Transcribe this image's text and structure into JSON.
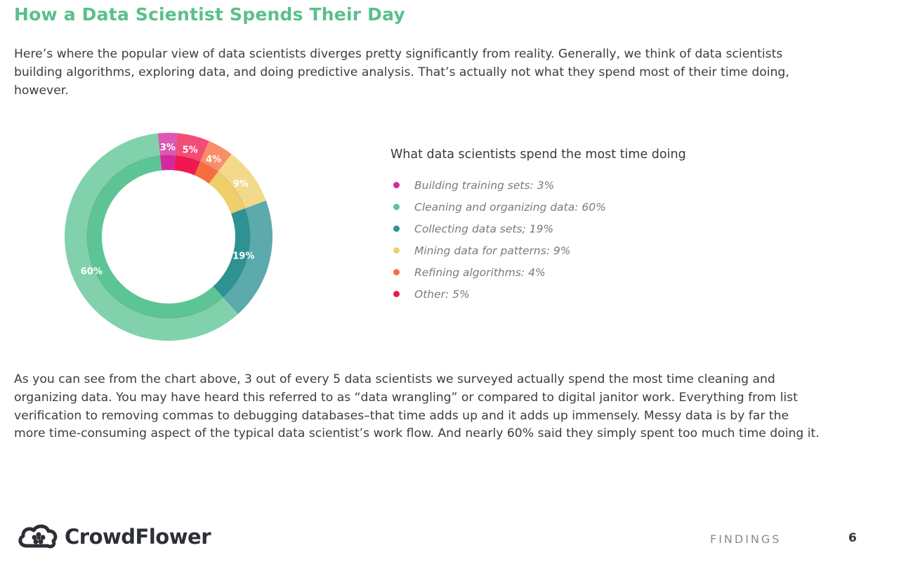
{
  "page": {
    "title": "How a Data Scientist Spends Their Day",
    "intro": "Here’s where the popular view of data scientists diverges pretty significantly from reality. Generally, we think of data scientists building algorithms, exploring data, and doing predictive analysis. That’s actually not what they spend most of their time doing, however.",
    "body": "As you can see from the chart above, 3 out of every 5 data scientists we surveyed actually spend the most time cleaning and organizing data. You may have heard this referred to as “data wrangling” or compared to digital janitor work. Everything from list verification to removing commas to debugging databases–that time adds up and it adds up immensely. Messy data is by far the more time-consuming aspect of the typical data scientist’s work flow. And nearly 60% said they simply spent too much time doing it."
  },
  "footer": {
    "brand": "CrowdFlower",
    "section": "FINDINGS",
    "page_number": "6"
  },
  "icons": {
    "brand_logo": "cloud-flower-icon",
    "legend_marker": "circle-dot-icon"
  },
  "chart_data": {
    "type": "pie",
    "title": "What data scientists spend the most time doing",
    "style": "donut",
    "legend_position": "right",
    "slices": [
      {
        "category": "Building training sets",
        "value": 3,
        "label": "3%",
        "legend": "Building training sets: 3%",
        "color": "#d4289f"
      },
      {
        "category": "Other",
        "value": 5,
        "label": "5%",
        "legend": "Other: 5%",
        "color": "#f0194f"
      },
      {
        "category": "Refining algorithms",
        "value": 4,
        "label": "4%",
        "legend": "Refining algorithms: 4%",
        "color": "#f86d3f"
      },
      {
        "category": "Mining data for patterns",
        "value": 9,
        "label": "9%",
        "legend": "Mining data for patterns: 9%",
        "color": "#efcf6a"
      },
      {
        "category": "Collecting data sets",
        "value": 19,
        "label": "19%",
        "legend": "Collecting data sets; 19%",
        "color": "#2e9293"
      },
      {
        "category": "Cleaning and organizing data",
        "value": 60,
        "label": "60%",
        "legend": "Cleaning and organizing data: 60%",
        "color": "#5dc595"
      }
    ],
    "legend_order": [
      0,
      5,
      4,
      3,
      2,
      1
    ]
  }
}
